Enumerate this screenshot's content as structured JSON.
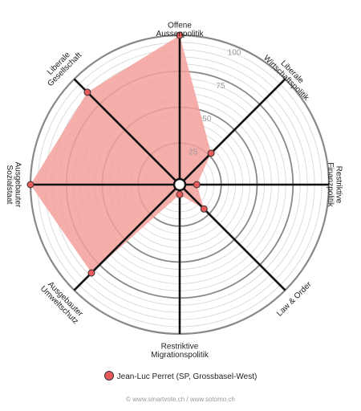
{
  "chart_data": {
    "type": "radar",
    "axes": [
      "Offene\nAussenpolitik",
      "Liberale\nWirtschaftspolitik",
      "Restriktive\nFinanzpolitik",
      "Law & Order",
      "Restriktive\nMigrationspolitik",
      "Ausgebauter\nUmweltschutz",
      "Ausgebauter\nSozialstaat",
      "Liberale\nGesellschaft"
    ],
    "series": [
      {
        "name": "Jean-Luc Perret (SP, Grossbasel-West)",
        "values": [
          100,
          27,
          8,
          20,
          3,
          83,
          100,
          87
        ]
      }
    ],
    "ticks": [
      25,
      50,
      75,
      100
    ],
    "range": [
      0,
      100
    ],
    "colors": {
      "fill": "#f4a09c",
      "marker": "#e85a5a",
      "spoke": "#111111",
      "grid": "#888888",
      "gridFine": "#d3d3d3"
    }
  },
  "footer": "© www.smartvote.ch / www.sotomo.ch"
}
